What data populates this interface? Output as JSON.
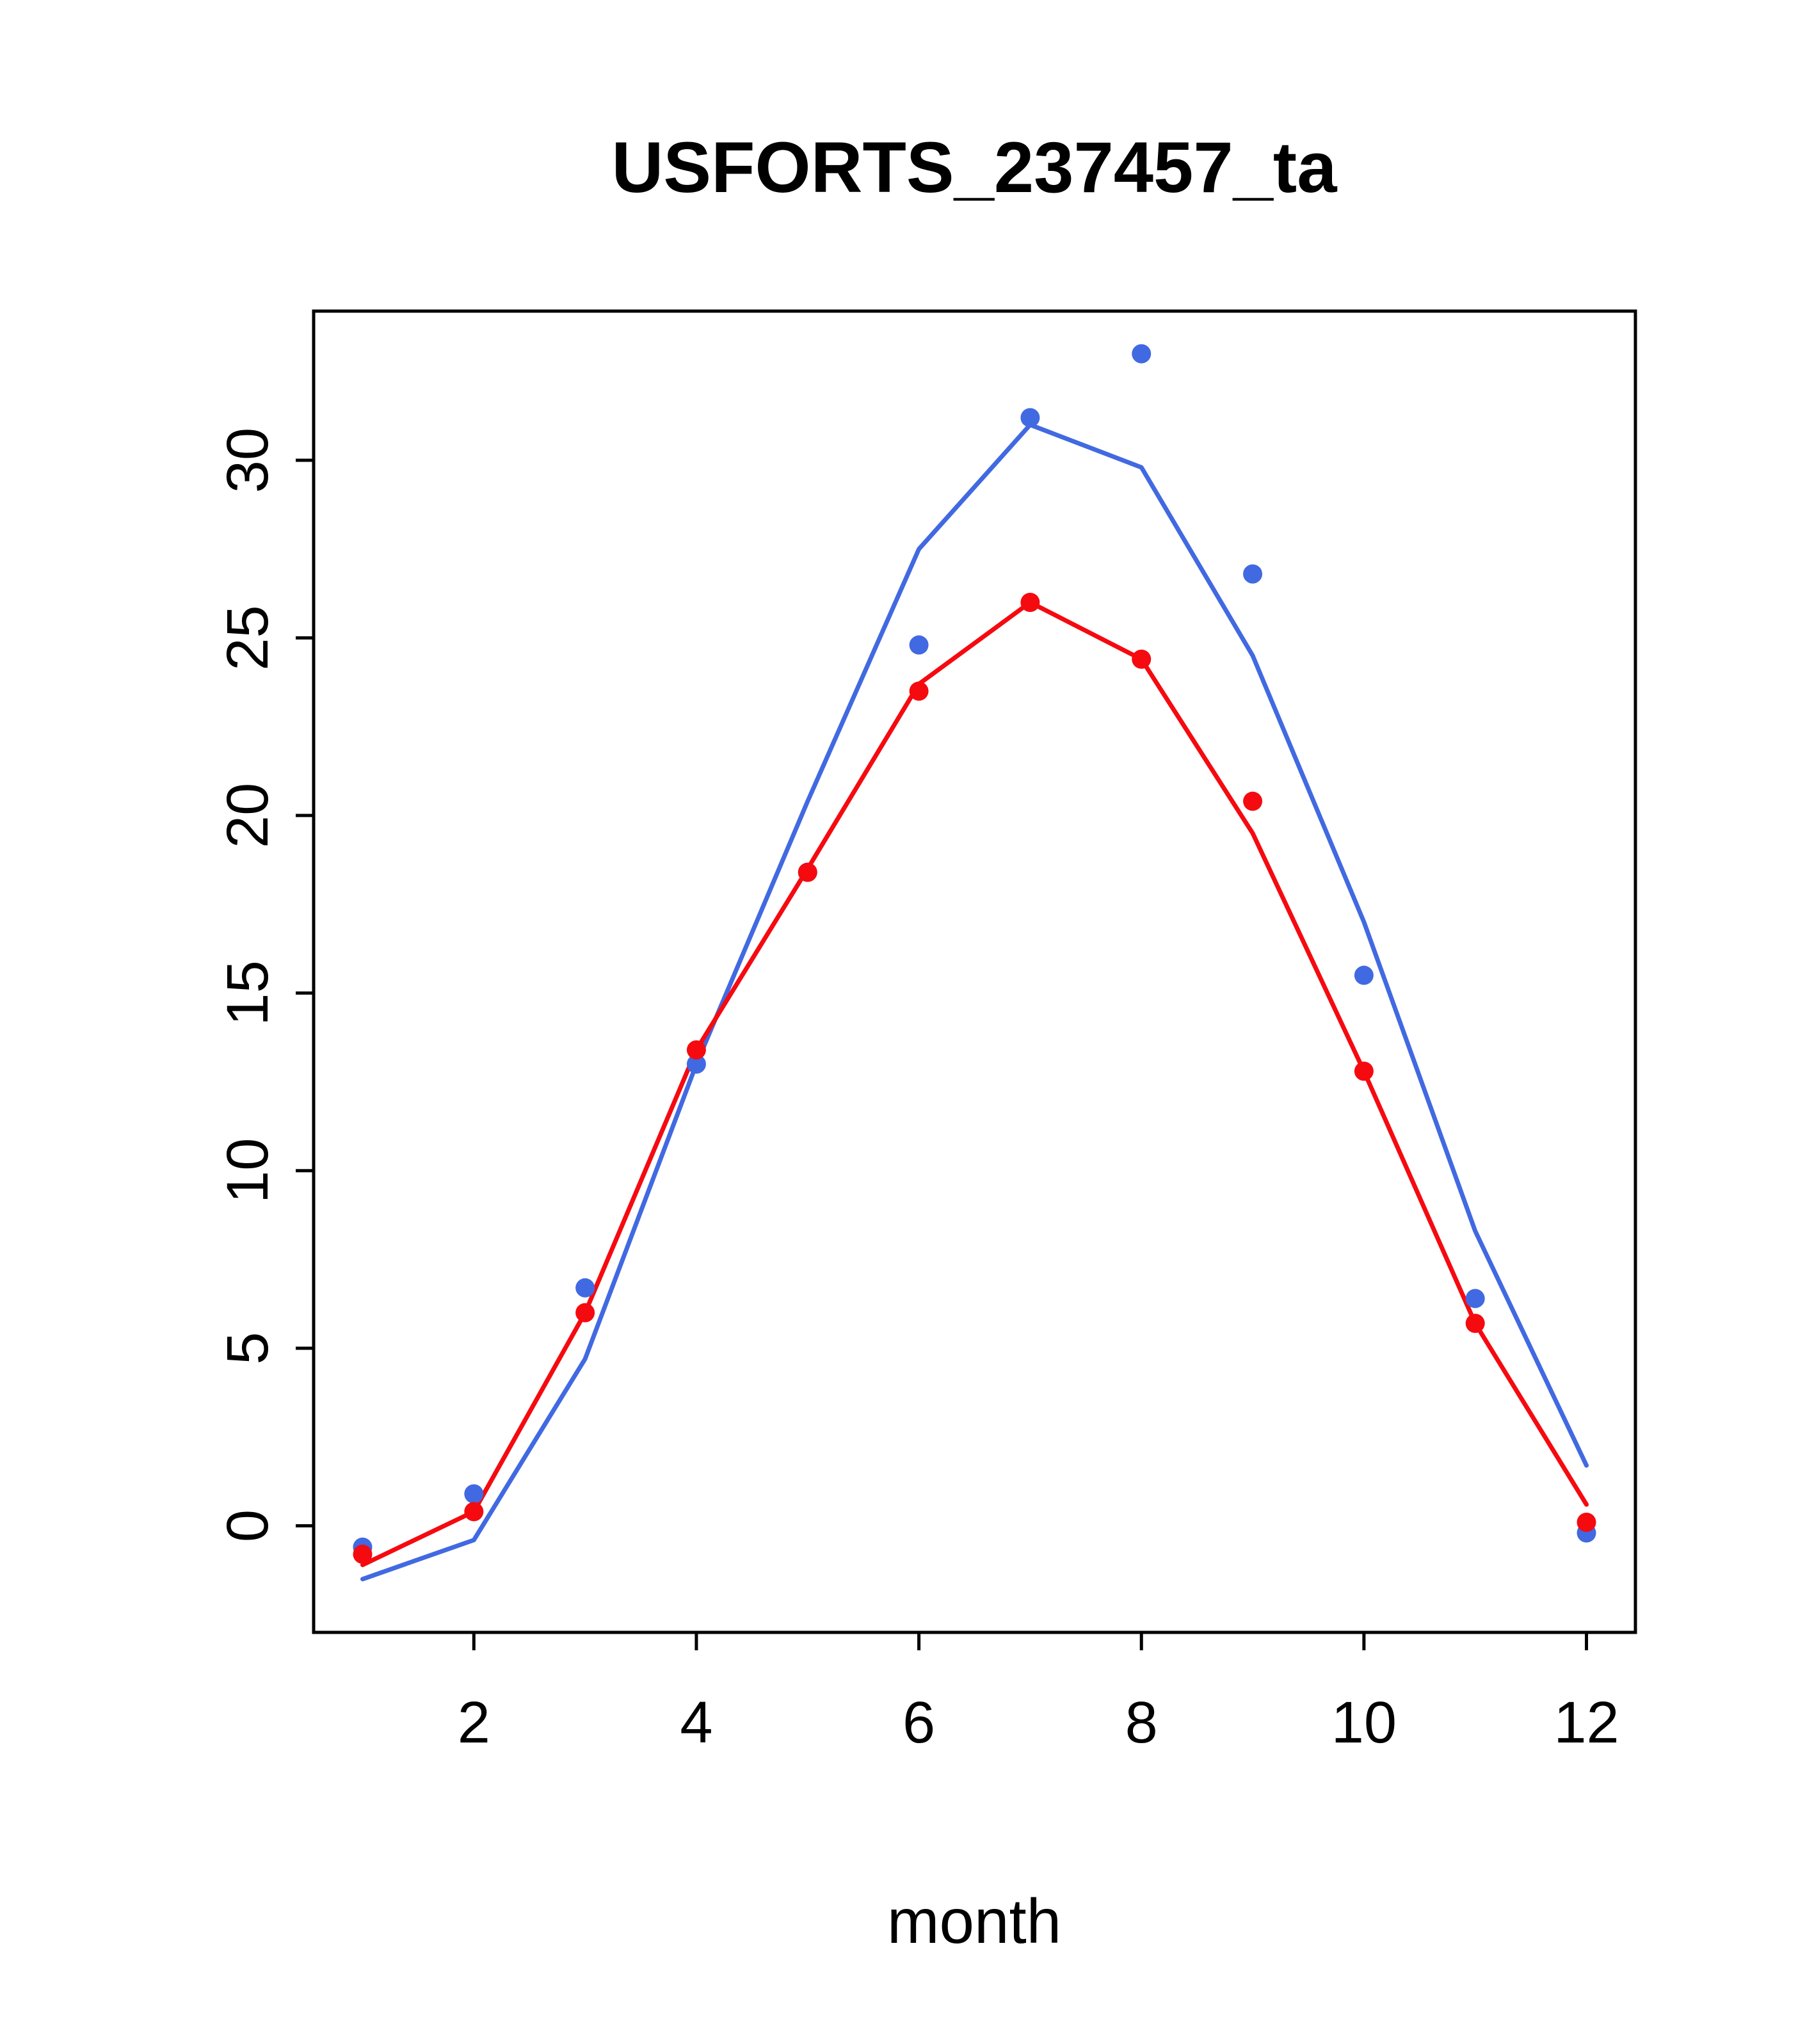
{
  "page": {
    "background": "#ffffff"
  },
  "chart_data": {
    "type": "line",
    "title": "USFORTS_237457_ta",
    "xlabel": "month",
    "ylabel": "",
    "x": [
      1,
      2,
      3,
      4,
      5,
      6,
      7,
      8,
      9,
      10,
      11,
      12
    ],
    "x_ticks": [
      2,
      4,
      6,
      8,
      10,
      12
    ],
    "y_ticks": [
      0,
      5,
      10,
      15,
      20,
      25,
      30
    ],
    "xlim": [
      0.56,
      12.44
    ],
    "ylim": [
      -3.0,
      34.2
    ],
    "grid": false,
    "legend": "none",
    "colors": {
      "blue": "#4169E1",
      "red": "#F50A10"
    },
    "series": [
      {
        "name": "blue-line",
        "type": "line",
        "color": "#4169E1",
        "values": [
          -1.5,
          -0.4,
          4.7,
          13.0,
          20.4,
          27.5,
          31.0,
          29.8,
          24.5,
          17.0,
          8.3,
          1.7
        ]
      },
      {
        "name": "red-line",
        "type": "line",
        "color": "#F50A10",
        "values": [
          -1.1,
          0.4,
          6.0,
          13.4,
          18.5,
          23.7,
          26.0,
          24.4,
          19.5,
          12.8,
          5.7,
          0.6
        ]
      },
      {
        "name": "blue-points",
        "type": "points",
        "color": "#4169E1",
        "values": [
          -0.6,
          0.9,
          6.7,
          13.0,
          18.4,
          24.8,
          31.2,
          33.0,
          26.8,
          15.5,
          6.4,
          -0.2
        ]
      },
      {
        "name": "red-points",
        "type": "points",
        "color": "#F50A10",
        "values": [
          -0.8,
          0.4,
          6.0,
          13.4,
          18.4,
          23.5,
          26.0,
          24.4,
          20.4,
          12.8,
          5.7,
          0.1
        ]
      }
    ]
  }
}
